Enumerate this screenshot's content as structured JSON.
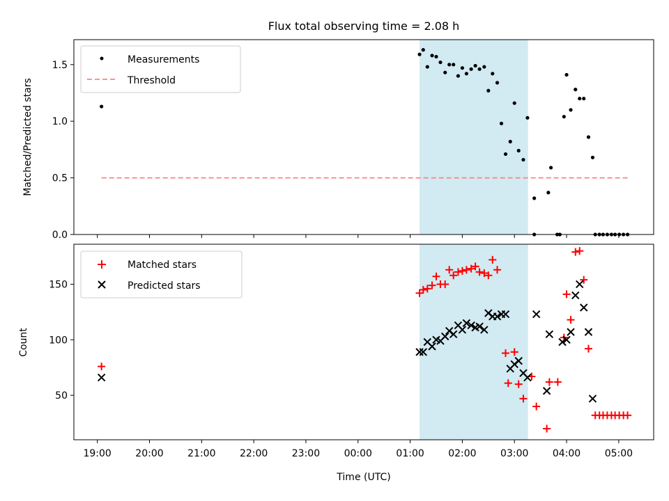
{
  "figure": {
    "title": "Flux total observing time = 2.08 h",
    "xlabel": "Time (UTC)",
    "x_tick_labels": [
      "19:00",
      "20:00",
      "21:00",
      "22:00",
      "23:00",
      "00:00",
      "01:00",
      "02:00",
      "03:00",
      "04:00",
      "05:00"
    ]
  },
  "chart_data": [
    {
      "type": "scatter",
      "ylabel": "Matched/Predicted stars",
      "xunit": "hours after 19:00 UTC",
      "xlim": [
        -0.45,
        10.67
      ],
      "ylim": [
        0,
        1.72
      ],
      "y_ticks": [
        0.0,
        0.5,
        1.0,
        1.5
      ],
      "y_tick_labels": [
        "0.0",
        "0.5",
        "1.0",
        "1.5"
      ],
      "legend_position": "top-left",
      "grid": false,
      "shaded_span": {
        "x0": 6.18,
        "x1": 8.26,
        "color": "#add8e6"
      },
      "threshold": {
        "name": "Threshold",
        "y": 0.5,
        "x0": 0.08,
        "x1": 10.17,
        "color": "#ff8080"
      },
      "series": [
        {
          "name": "Measurements",
          "marker": "dot",
          "color": "#000000",
          "points": [
            [
              0.08,
              1.13
            ],
            [
              6.18,
              1.59
            ],
            [
              6.25,
              1.63
            ],
            [
              6.33,
              1.48
            ],
            [
              6.42,
              1.58
            ],
            [
              6.5,
              1.57
            ],
            [
              6.58,
              1.52
            ],
            [
              6.67,
              1.43
            ],
            [
              6.75,
              1.5
            ],
            [
              6.83,
              1.5
            ],
            [
              6.92,
              1.4
            ],
            [
              7.0,
              1.47
            ],
            [
              7.08,
              1.42
            ],
            [
              7.17,
              1.46
            ],
            [
              7.25,
              1.49
            ],
            [
              7.33,
              1.46
            ],
            [
              7.42,
              1.48
            ],
            [
              7.5,
              1.27
            ],
            [
              7.58,
              1.42
            ],
            [
              7.67,
              1.34
            ],
            [
              7.75,
              0.98
            ],
            [
              7.83,
              0.71
            ],
            [
              7.92,
              0.82
            ],
            [
              8.0,
              1.16
            ],
            [
              8.08,
              0.74
            ],
            [
              8.17,
              0.66
            ],
            [
              8.25,
              1.03
            ],
            [
              8.38,
              0.32
            ],
            [
              8.38,
              0.0
            ],
            [
              8.65,
              0.37
            ],
            [
              8.7,
              0.59
            ],
            [
              8.82,
              0.0
            ],
            [
              8.87,
              0.0
            ],
            [
              8.95,
              1.04
            ],
            [
              9.0,
              1.41
            ],
            [
              9.08,
              1.1
            ],
            [
              9.17,
              1.28
            ],
            [
              9.25,
              1.2
            ],
            [
              9.33,
              1.2
            ],
            [
              9.42,
              0.86
            ],
            [
              9.5,
              0.68
            ],
            [
              9.55,
              0.0
            ],
            [
              9.63,
              0.0
            ],
            [
              9.7,
              0.0
            ],
            [
              9.78,
              0.0
            ],
            [
              9.86,
              0.0
            ],
            [
              9.93,
              0.0
            ],
            [
              10.01,
              0.0
            ],
            [
              10.09,
              0.0
            ],
            [
              10.17,
              0.0
            ]
          ]
        }
      ]
    },
    {
      "type": "scatter",
      "ylabel": "Count",
      "xunit": "hours after 19:00 UTC",
      "xlim": [
        -0.45,
        10.67
      ],
      "ylim": [
        10,
        186
      ],
      "y_ticks": [
        50,
        100,
        150
      ],
      "y_tick_labels": [
        "50",
        "100",
        "150"
      ],
      "legend_position": "top-left",
      "grid": false,
      "shaded_span": {
        "x0": 6.18,
        "x1": 8.26,
        "color": "#add8e6"
      },
      "series": [
        {
          "name": "Matched stars",
          "marker": "plus",
          "color": "#ff0000",
          "points": [
            [
              0.08,
              76
            ],
            [
              6.18,
              142
            ],
            [
              6.25,
              145
            ],
            [
              6.33,
              146
            ],
            [
              6.42,
              149
            ],
            [
              6.5,
              157
            ],
            [
              6.58,
              150
            ],
            [
              6.67,
              150
            ],
            [
              6.75,
              163
            ],
            [
              6.83,
              158
            ],
            [
              6.92,
              161
            ],
            [
              7.0,
              162
            ],
            [
              7.08,
              163
            ],
            [
              7.17,
              164
            ],
            [
              7.25,
              166
            ],
            [
              7.33,
              161
            ],
            [
              7.42,
              160
            ],
            [
              7.5,
              158
            ],
            [
              7.58,
              172
            ],
            [
              7.67,
              163
            ],
            [
              7.83,
              88
            ],
            [
              7.88,
              61
            ],
            [
              8.0,
              89
            ],
            [
              8.08,
              60
            ],
            [
              8.17,
              47
            ],
            [
              8.33,
              67
            ],
            [
              8.42,
              40
            ],
            [
              8.62,
              20
            ],
            [
              8.67,
              62
            ],
            [
              8.83,
              62
            ],
            [
              8.95,
              102
            ],
            [
              9.0,
              141
            ],
            [
              9.08,
              118
            ],
            [
              9.17,
              179
            ],
            [
              9.25,
              180
            ],
            [
              9.33,
              154
            ],
            [
              9.42,
              92
            ],
            [
              9.55,
              32
            ],
            [
              9.63,
              32
            ],
            [
              9.7,
              32
            ],
            [
              9.78,
              32
            ],
            [
              9.86,
              32
            ],
            [
              9.93,
              32
            ],
            [
              10.01,
              32
            ],
            [
              10.09,
              32
            ],
            [
              10.17,
              32
            ]
          ]
        },
        {
          "name": "Predicted stars",
          "marker": "x",
          "color": "#000000",
          "points": [
            [
              0.08,
              66
            ],
            [
              6.18,
              89
            ],
            [
              6.25,
              89
            ],
            [
              6.33,
              98
            ],
            [
              6.42,
              94
            ],
            [
              6.5,
              100
            ],
            [
              6.58,
              99
            ],
            [
              6.67,
              103
            ],
            [
              6.75,
              108
            ],
            [
              6.83,
              105
            ],
            [
              6.92,
              113
            ],
            [
              7.0,
              109
            ],
            [
              7.08,
              115
            ],
            [
              7.17,
              113
            ],
            [
              7.25,
              111
            ],
            [
              7.33,
              112
            ],
            [
              7.42,
              109
            ],
            [
              7.5,
              124
            ],
            [
              7.58,
              121
            ],
            [
              7.67,
              121
            ],
            [
              7.75,
              123
            ],
            [
              7.83,
              123
            ],
            [
              7.92,
              74
            ],
            [
              8.0,
              78
            ],
            [
              8.08,
              81
            ],
            [
              8.17,
              70
            ],
            [
              8.25,
              66
            ],
            [
              8.42,
              123
            ],
            [
              8.62,
              54
            ],
            [
              8.67,
              105
            ],
            [
              8.92,
              98
            ],
            [
              9.0,
              100
            ],
            [
              9.08,
              107
            ],
            [
              9.17,
              140
            ],
            [
              9.25,
              150
            ],
            [
              9.33,
              129
            ],
            [
              9.42,
              107
            ],
            [
              9.5,
              47
            ]
          ]
        }
      ]
    }
  ]
}
